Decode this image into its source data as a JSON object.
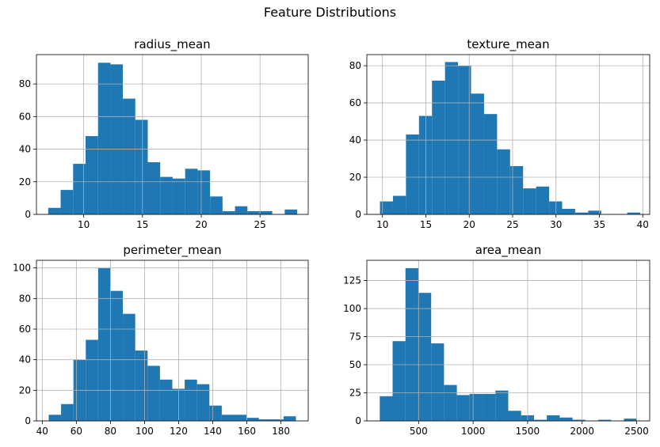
{
  "figure": {
    "title": "Feature Distributions"
  },
  "colors": {
    "bar": "#1f77b4",
    "grid": "#b0b0b0",
    "axis": "#000000"
  },
  "chart_data": [
    {
      "type": "bar",
      "title": "radius_mean",
      "xlabel": "",
      "ylabel": "",
      "grid": true,
      "xlim": [
        5.98,
        29.1
      ],
      "ylim": [
        0,
        98
      ],
      "xticks": [
        10,
        15,
        20,
        25
      ],
      "yticks": [
        0,
        20,
        40,
        60,
        80
      ],
      "bin_edges": [
        6.98,
        8.04,
        9.1,
        10.16,
        11.22,
        12.28,
        13.33,
        14.39,
        15.45,
        16.51,
        17.57,
        18.63,
        19.69,
        20.75,
        21.81,
        22.87,
        23.93,
        24.98,
        26.04,
        27.1,
        28.16
      ],
      "counts": [
        4,
        15,
        31,
        48,
        93,
        92,
        71,
        58,
        32,
        23,
        22,
        28,
        27,
        11,
        2,
        5,
        2,
        2,
        0,
        3
      ]
    },
    {
      "type": "bar",
      "title": "texture_mean",
      "xlabel": "",
      "ylabel": "",
      "grid": true,
      "xlim": [
        8.2,
        40.8
      ],
      "ylim": [
        0,
        86
      ],
      "xticks": [
        10,
        15,
        20,
        25,
        30,
        35,
        40
      ],
      "yticks": [
        0,
        20,
        40,
        60,
        80
      ],
      "bin_edges": [
        9.71,
        11.21,
        12.71,
        14.21,
        15.71,
        17.21,
        18.71,
        20.21,
        21.71,
        23.21,
        24.71,
        26.21,
        27.71,
        29.21,
        30.71,
        32.21,
        33.71,
        35.21,
        36.71,
        38.21,
        39.71
      ],
      "counts": [
        7,
        10,
        43,
        53,
        72,
        82,
        80,
        65,
        54,
        35,
        26,
        14,
        15,
        7,
        3,
        1,
        2,
        0,
        0,
        1
      ]
    },
    {
      "type": "bar",
      "title": "perimeter_mean",
      "xlabel": "",
      "ylabel": "",
      "grid": true,
      "xlim": [
        36.6,
        196.0
      ],
      "ylim": [
        0,
        105
      ],
      "xticks": [
        40,
        60,
        80,
        100,
        120,
        140,
        160,
        180
      ],
      "yticks": [
        0,
        20,
        40,
        60,
        80,
        100
      ],
      "bin_edges": [
        43.79,
        51.04,
        58.29,
        65.54,
        72.79,
        80.04,
        87.29,
        94.54,
        101.79,
        109.04,
        116.29,
        123.54,
        130.79,
        138.04,
        145.29,
        152.54,
        159.79,
        167.04,
        174.29,
        181.54,
        188.79
      ],
      "counts": [
        4,
        11,
        40,
        53,
        100,
        85,
        70,
        46,
        36,
        27,
        21,
        27,
        24,
        10,
        4,
        4,
        2,
        1,
        1,
        3
      ]
    },
    {
      "type": "bar",
      "title": "area_mean",
      "xlabel": "",
      "ylabel": "",
      "grid": true,
      "xlim": [
        25,
        2620
      ],
      "ylim": [
        0,
        143
      ],
      "xticks": [
        500,
        1000,
        1500,
        2000,
        2500
      ],
      "yticks": [
        0,
        25,
        50,
        75,
        100,
        125
      ],
      "bin_edges": [
        143.5,
        261.4,
        379.3,
        497.2,
        615.1,
        733.0,
        850.9,
        968.8,
        1086.7,
        1204.6,
        1322.5,
        1440.4,
        1558.3,
        1676.2,
        1794.1,
        1912.0,
        2029.9,
        2147.8,
        2265.7,
        2383.6,
        2501.5
      ],
      "counts": [
        22,
        71,
        136,
        114,
        69,
        32,
        23,
        24,
        24,
        27,
        9,
        5,
        1,
        5,
        3,
        1,
        0,
        1,
        0,
        2
      ]
    }
  ]
}
